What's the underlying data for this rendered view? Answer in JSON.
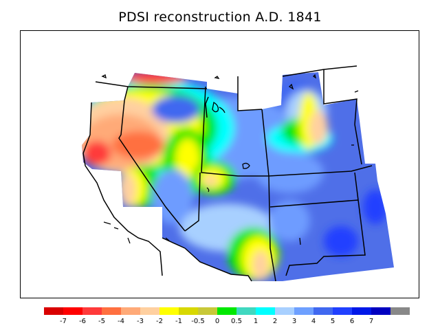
{
  "title": "PDSI reconstruction A.D. 1841",
  "map": {
    "background": "#4f6fe8",
    "regions": [
      {
        "name": "pacific-northwest-dry",
        "class_index": 4
      },
      {
        "name": "nw-red-core",
        "class_index": 2
      },
      {
        "name": "oregon-dry",
        "class_index": 3
      },
      {
        "name": "nevada-yellow",
        "class_index": 6
      },
      {
        "name": "utah-wet-center",
        "class_index": 13
      },
      {
        "name": "four-corners-dry",
        "class_index": 7
      },
      {
        "name": "arizona-dry",
        "class_index": 5
      },
      {
        "name": "montana-wet",
        "class_index": 13
      },
      {
        "name": "wyoming-green",
        "class_index": 9
      },
      {
        "name": "new-mexico-wet",
        "class_index": 15
      }
    ]
  },
  "legend": {
    "colors": [
      "#d90000",
      "#ff0000",
      "#ff3a3a",
      "#ff7040",
      "#ffaa78",
      "#ffd0a0",
      "#ffff00",
      "#d8d800",
      "#c8c838",
      "#00e800",
      "#40d8c0",
      "#00ffff",
      "#a8d0ff",
      "#6ea0ff",
      "#4068f0",
      "#2040ff",
      "#0018e8",
      "#0000c0",
      "#888888"
    ],
    "labels": [
      "-7",
      "-6",
      "-5",
      "-4",
      "-3",
      "-2",
      "-1",
      "-0.5",
      "0",
      "0.5",
      "1",
      "2",
      "3",
      "4",
      "5",
      "6",
      "7"
    ]
  }
}
